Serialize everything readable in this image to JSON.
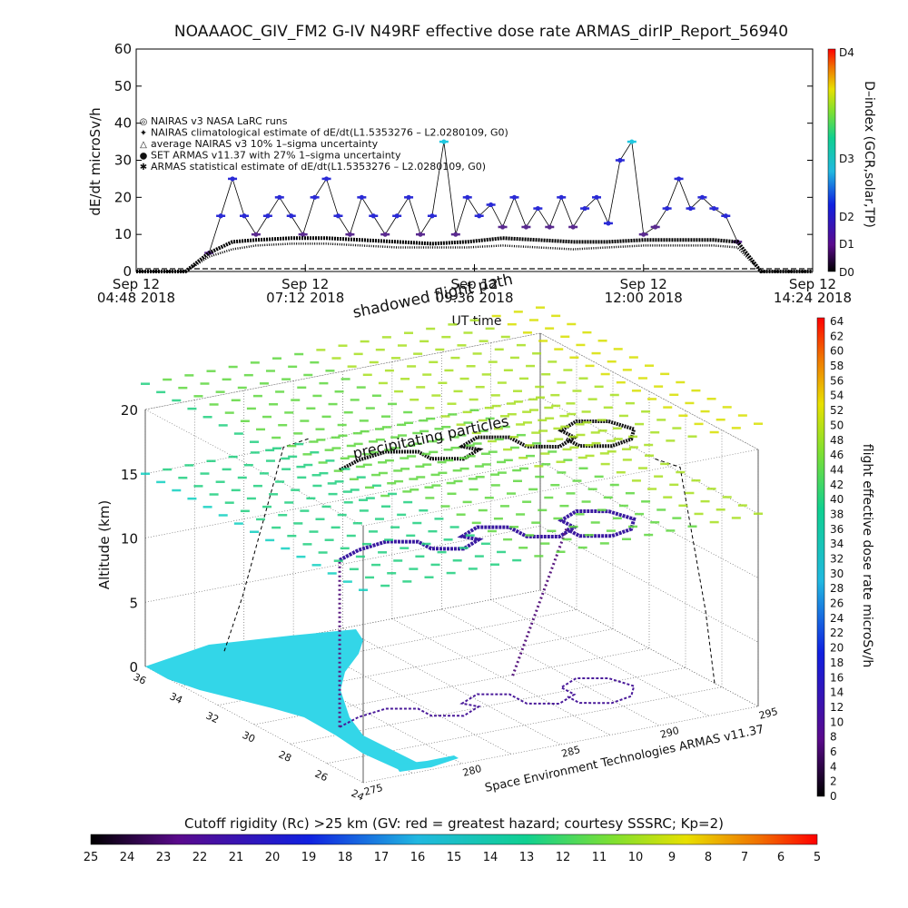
{
  "title": "NOAAAOC_GIV_FM2 G-IV    N49RF   effective dose rate ARMAS_dirIP_Report_56940",
  "top_panel": {
    "ylabel": "dE/dt microSv/h",
    "xlabel": "UT time",
    "y_ticks": [
      "0",
      "10",
      "20",
      "30",
      "40",
      "50",
      "60"
    ],
    "x_ticks": [
      {
        "line1": "Sep 12",
        "line2": "04:48 2018"
      },
      {
        "line1": "Sep 12",
        "line2": "07:12 2018"
      },
      {
        "line1": "Sep 12",
        "line2": "09:36 2018"
      },
      {
        "line1": "Sep 12",
        "line2": "12:00 2018"
      },
      {
        "line1": "Sep 12",
        "line2": "14:24 2018"
      }
    ],
    "legend": [
      {
        "symbol": "◎",
        "text": "NAIRAS v3 NASA LaRC runs"
      },
      {
        "symbol": "✦",
        "text": "NAIRAS climatological estimate of dE/dt(L1.5353276 – L2.0280109, G0)"
      },
      {
        "symbol": "△",
        "text": "average NAIRAS v3 10% 1–sigma uncertainty"
      },
      {
        "symbol": "●",
        "text": "SET ARMAS v11.37 with 27% 1–sigma uncertainty"
      },
      {
        "symbol": "✱",
        "text": "ARMAS statistical estimate of dE/dt(L1.5353276 – L2.0280109, G0)"
      }
    ],
    "dindex_label": "D–index (GCR,solar,TP)",
    "dindex_ticks": [
      "D0",
      "D1",
      "D2",
      "D3",
      "D4"
    ]
  },
  "bottom_panel": {
    "zlabel": "Altitude (km)",
    "z_ticks": [
      "0",
      "5",
      "10",
      "15",
      "20"
    ],
    "lat_ticks": [
      "24",
      "26",
      "28",
      "30",
      "32",
      "34",
      "36"
    ],
    "lon_ticks": [
      "275",
      "280",
      "285",
      "290",
      "295"
    ],
    "annotation_shadowed": "shadowed flight path",
    "annotation_precip": "precipitating particles",
    "credit": "Space Environment Technologies ARMAS v11.37",
    "colorbar_label": "flight effective dose rate microSv/h",
    "colorbar_ticks": [
      "0",
      "2",
      "4",
      "6",
      "8",
      "10",
      "12",
      "14",
      "16",
      "18",
      "20",
      "22",
      "24",
      "26",
      "28",
      "30",
      "32",
      "34",
      "36",
      "38",
      "40",
      "42",
      "44",
      "46",
      "48",
      "50",
      "52",
      "54",
      "56",
      "58",
      "60",
      "62",
      "64"
    ]
  },
  "cutoff_bar": {
    "label": "Cutoff rigidity (Rc) >25 km (GV: red = greatest hazard; courtesy SSSRC; Kp=2)",
    "ticks": [
      "25",
      "24",
      "23",
      "22",
      "21",
      "20",
      "19",
      "18",
      "17",
      "16",
      "15",
      "14",
      "13",
      "12",
      "11",
      "10",
      "9",
      "8",
      "7",
      "6",
      "5"
    ]
  },
  "chart_data": {
    "type": "scatter",
    "title": "NOAAAOC_GIV_FM2 G-IV    N49RF   effective dose rate ARMAS_dirIP_Report_56940",
    "xlabel": "UT time",
    "ylabel": "dE/dt microSv/h",
    "ylim": [
      0,
      60
    ],
    "xlim": [
      "2018-09-12 04:48",
      "2018-09-12 14:24"
    ],
    "series": [
      {
        "name": "SET ARMAS v11.37 with 27% 1–sigma uncertainty",
        "x": [
          "05:50",
          "06:00",
          "06:10",
          "06:20",
          "06:30",
          "06:40",
          "06:50",
          "07:00",
          "07:10",
          "07:20",
          "07:30",
          "07:40",
          "07:50",
          "08:00",
          "08:10",
          "08:20",
          "08:30",
          "08:40",
          "08:50",
          "09:00",
          "09:10",
          "09:20",
          "09:30",
          "09:40",
          "09:50",
          "10:00",
          "10:10",
          "10:20",
          "10:30",
          "10:40",
          "10:50",
          "11:00",
          "11:10",
          "11:20",
          "11:30",
          "11:40",
          "11:50",
          "12:00",
          "12:10",
          "12:20",
          "12:30",
          "12:40",
          "12:50",
          "13:00",
          "13:10",
          "13:20"
        ],
        "values": [
          5,
          15,
          25,
          15,
          10,
          15,
          20,
          15,
          10,
          20,
          25,
          15,
          10,
          20,
          15,
          10,
          15,
          20,
          10,
          15,
          35,
          10,
          20,
          15,
          18,
          12,
          20,
          12,
          17,
          12,
          20,
          12,
          17,
          20,
          13,
          30,
          35,
          10,
          12,
          17,
          25,
          17,
          20,
          17,
          15,
          8
        ]
      },
      {
        "name": "ARMAS statistical estimate of dE/dt(L1.5353276 – L2.0280109, G0)",
        "x": [
          "04:48",
          "05:30",
          "05:50",
          "06:10",
          "06:30",
          "07:00",
          "07:30",
          "08:00",
          "08:30",
          "09:00",
          "09:30",
          "10:00",
          "10:30",
          "11:00",
          "11:30",
          "12:00",
          "12:30",
          "13:00",
          "13:20",
          "13:40",
          "14:24"
        ],
        "values": [
          0,
          0,
          5,
          8,
          8.5,
          9,
          9,
          8.5,
          8,
          7.5,
          8,
          9,
          8.5,
          8,
          8,
          8.5,
          8.5,
          8.5,
          8,
          0,
          0
        ]
      },
      {
        "name": "NAIRAS climatological estimate of dE/dt(L1.5353276 – L2.0280109, G0)",
        "x": [
          "04:48",
          "05:30",
          "05:50",
          "06:10",
          "06:30",
          "07:00",
          "07:30",
          "08:00",
          "08:30",
          "09:00",
          "09:30",
          "10:00",
          "10:30",
          "11:00",
          "11:30",
          "12:00",
          "12:30",
          "13:00",
          "13:20",
          "13:40",
          "14:24"
        ],
        "values": [
          0,
          0,
          4,
          6,
          7,
          7.5,
          7.5,
          7,
          6.5,
          6.5,
          6.5,
          7,
          6.5,
          6,
          6.5,
          7,
          7,
          7,
          6.5,
          0,
          0
        ]
      }
    ]
  },
  "colors": {
    "armas_point": "#2a2ad6",
    "black": "#000000",
    "ocean": "#ffffff",
    "land": "#33d6e8"
  }
}
